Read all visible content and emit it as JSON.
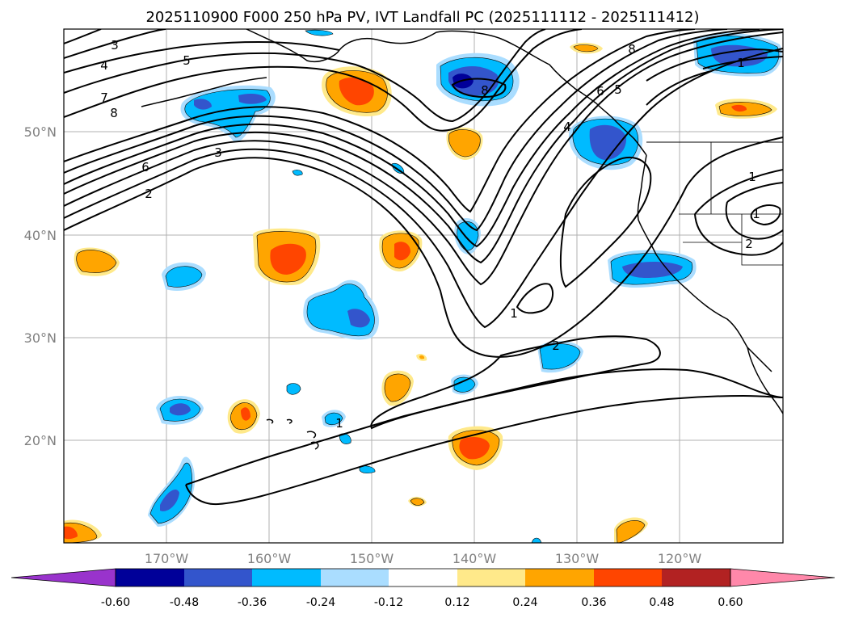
{
  "title": "2025110900 F000 250 hPa PV, IVT Landfall PC (2025111112 - 2025111412)",
  "axes": {
    "lon_ticks": [
      "170°W",
      "160°W",
      "150°W",
      "140°W",
      "130°W",
      "120°W"
    ],
    "lat_ticks": [
      "50°N",
      "40°N",
      "30°N",
      "20°N"
    ],
    "lon_range": [
      -180,
      -110
    ],
    "lat_range": [
      10,
      60
    ]
  },
  "colorbar": {
    "levels": [
      "-0.60",
      "-0.48",
      "-0.36",
      "-0.24",
      "-0.12",
      "0.12",
      "0.24",
      "0.36",
      "0.48",
      "0.60"
    ],
    "colors": [
      "#9933cc",
      "#000099",
      "#3355cc",
      "#00bbff",
      "#aaddff",
      "#ffffff",
      "#ffe98a",
      "#ffa500",
      "#ff4500",
      "#b22222",
      "#ff88aa"
    ]
  },
  "pv_contour_labels": [
    {
      "text": "3"
    },
    {
      "text": "4"
    },
    {
      "text": "5"
    },
    {
      "text": "7"
    },
    {
      "text": "8"
    },
    {
      "text": "6"
    },
    {
      "text": "2"
    },
    {
      "text": "3"
    },
    {
      "text": "8"
    },
    {
      "text": "8"
    },
    {
      "text": "5"
    },
    {
      "text": "6"
    },
    {
      "text": "4"
    },
    {
      "text": "1"
    },
    {
      "text": "1"
    },
    {
      "text": "1"
    },
    {
      "text": "2"
    },
    {
      "text": "2"
    },
    {
      "text": "1"
    },
    {
      "text": "1"
    }
  ],
  "colors": {
    "frame": "#000000",
    "grid": "#b0b0b0",
    "coast": "#000000",
    "contour": "#000000"
  }
}
